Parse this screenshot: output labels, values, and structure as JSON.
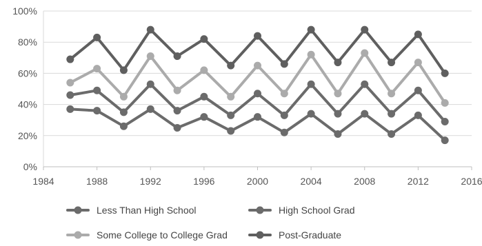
{
  "chart_data": {
    "type": "line",
    "x": [
      1986,
      1988,
      1990,
      1992,
      1994,
      1996,
      1998,
      2000,
      2002,
      2004,
      2006,
      2008,
      2010,
      2012,
      2014
    ],
    "xlim": [
      1984,
      2016
    ],
    "xticks": [
      1984,
      1988,
      1992,
      1996,
      2000,
      2004,
      2008,
      2012,
      2016
    ],
    "ylim": [
      0,
      100
    ],
    "yticks": [
      0,
      20,
      40,
      60,
      80,
      100
    ],
    "ytick_labels": [
      "0%",
      "20%",
      "40%",
      "60%",
      "80%",
      "100%"
    ],
    "grid": "horizontal",
    "legend_position": "bottom",
    "series": [
      {
        "name": "Less Than High School",
        "color": "#6b6b6b",
        "values": [
          37,
          36,
          26,
          37,
          25,
          32,
          23,
          32,
          22,
          34,
          21,
          34,
          21,
          33,
          17
        ]
      },
      {
        "name": "High School Grad",
        "color": "#6b6b6b",
        "values": [
          46,
          49,
          35,
          53,
          36,
          45,
          33,
          47,
          33,
          53,
          34,
          53,
          34,
          49,
          29
        ]
      },
      {
        "name": "Some College to College Grad",
        "color": "#ababab",
        "values": [
          54,
          63,
          45,
          71,
          49,
          62,
          45,
          65,
          47,
          72,
          47,
          73,
          47,
          67,
          41
        ]
      },
      {
        "name": "Post-Graduate",
        "color": "#5f5f5f",
        "values": [
          69,
          83,
          62,
          88,
          71,
          82,
          65,
          84,
          66,
          88,
          67,
          88,
          67,
          85,
          60
        ]
      }
    ]
  }
}
